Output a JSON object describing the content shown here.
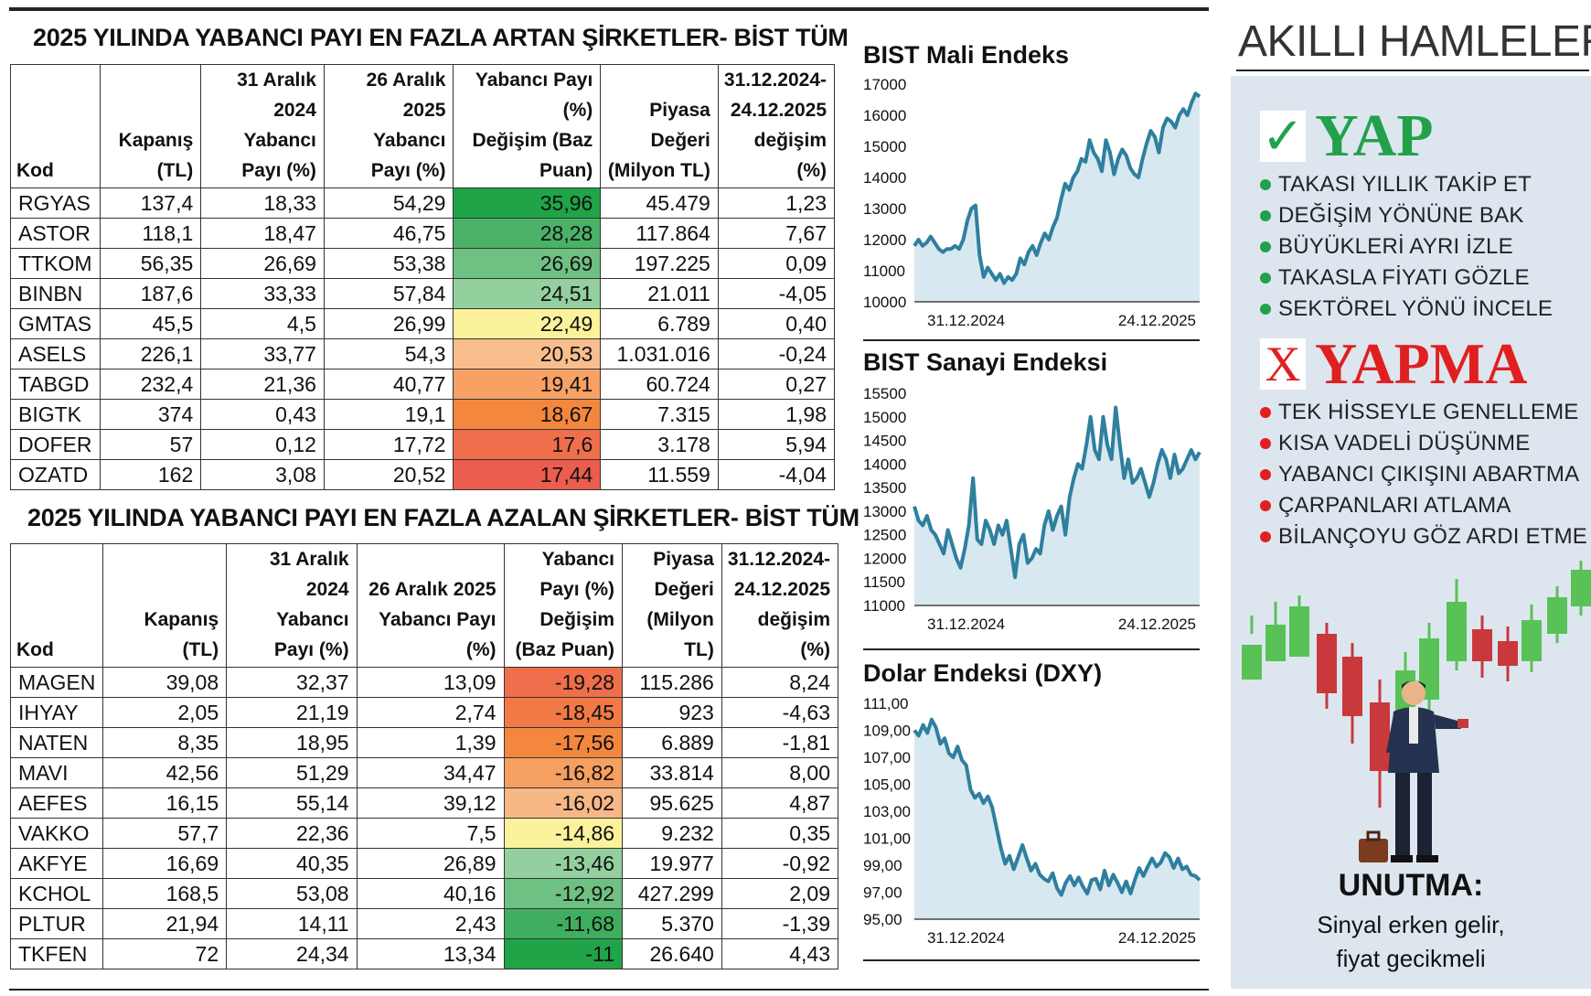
{
  "colors": {
    "ink": "#111111",
    "line": "#2f7f9f",
    "area": "#d8e8f0",
    "green": "#22a14a",
    "red": "#e02020",
    "candle_green": "#58c257",
    "candle_red": "#c9393c"
  },
  "increase_table": {
    "title": "2025 YILINDA YABANCI PAYI EN FAZLA ARTAN ŞİRKETLER- BİST TÜM",
    "headers": {
      "kod": "Kod",
      "kapanis": [
        "Kapanış",
        "(TL)"
      ],
      "aralik31": [
        "31 Aralık",
        "2024 Yabancı",
        "Payı (%)"
      ],
      "aralik26": [
        "26 Aralık",
        "2025 Yabancı",
        "Payı (%)"
      ],
      "degisim": [
        "Yabancı Payı (%)",
        "Değişim (Baz",
        "Puan)"
      ],
      "piyasa": [
        "Piyasa",
        "Değeri",
        "(Milyon TL)"
      ],
      "yillik": [
        "31.12.2024-",
        "24.12.2025",
        "değişim",
        "(%)"
      ]
    },
    "rows": [
      {
        "kod": "RGYAS",
        "kapanis": "137,4",
        "aralik31": "18,33",
        "aralik26": "54,29",
        "degisim": "35,96",
        "piyasa": "45.479",
        "yillik": "1,23",
        "color": "#1fa448"
      },
      {
        "kod": "ASTOR",
        "kapanis": "118,1",
        "aralik31": "18,47",
        "aralik26": "46,75",
        "degisim": "28,28",
        "piyasa": "117.864",
        "yillik": "7,67",
        "color": "#4ab266"
      },
      {
        "kod": "TTKOM",
        "kapanis": "56,35",
        "aralik31": "26,69",
        "aralik26": "53,38",
        "degisim": "26,69",
        "piyasa": "197.225",
        "yillik": "0,09",
        "color": "#6ec083"
      },
      {
        "kod": "BINBN",
        "kapanis": "187,6",
        "aralik31": "33,33",
        "aralik26": "57,84",
        "degisim": "24,51",
        "piyasa": "21.011",
        "yillik": "-4,05",
        "color": "#93d09e"
      },
      {
        "kod": "GMTAS",
        "kapanis": "45,5",
        "aralik31": "4,5",
        "aralik26": "26,99",
        "degisim": "22,49",
        "piyasa": "6.789",
        "yillik": "0,40",
        "color": "#fbf29b"
      },
      {
        "kod": "ASELS",
        "kapanis": "226,1",
        "aralik31": "33,77",
        "aralik26": "54,3",
        "degisim": "20,53",
        "piyasa": "1.031.016",
        "yillik": "-0,24",
        "color": "#f9be8e"
      },
      {
        "kod": "TABGD",
        "kapanis": "232,4",
        "aralik31": "21,36",
        "aralik26": "40,77",
        "degisim": "19,41",
        "piyasa": "60.724",
        "yillik": "0,27",
        "color": "#f7a164"
      },
      {
        "kod": "BIGTK",
        "kapanis": "374",
        "aralik31": "0,43",
        "aralik26": "19,1",
        "degisim": "18,67",
        "piyasa": "7.315",
        "yillik": "1,98",
        "color": "#f3873e"
      },
      {
        "kod": "DOFER",
        "kapanis": "57",
        "aralik31": "0,12",
        "aralik26": "17,72",
        "degisim": "17,6",
        "piyasa": "3.178",
        "yillik": "5,94",
        "color": "#ef6e4c"
      },
      {
        "kod": "OZATD",
        "kapanis": "162",
        "aralik31": "3,08",
        "aralik26": "20,52",
        "degisim": "17,44",
        "piyasa": "11.559",
        "yillik": "-4,04",
        "color": "#eb5d4e"
      }
    ]
  },
  "decrease_table": {
    "title": "2025 YILINDA YABANCI PAYI EN FAZLA AZALAN ŞİRKETLER- BİST TÜM",
    "headers": {
      "kod": "Kod",
      "kapanis": [
        "Kapanış (TL)"
      ],
      "aralik31": [
        "31 Aralık",
        "2024 Yabancı",
        "Payı (%)"
      ],
      "aralik26": [
        "26 Aralık 2025",
        "Yabancı Payı (%)"
      ],
      "degisim": [
        "Yabancı",
        "Payı (%)",
        "Değişim",
        "(Baz Puan)"
      ],
      "piyasa": [
        "Piyasa",
        "Değeri",
        "(Milyon",
        "TL)"
      ],
      "yillik": [
        "31.12.2024-",
        "24.12.2025",
        "değişim",
        "(%)"
      ]
    },
    "rows": [
      {
        "kod": "MAGEN",
        "kapanis": "39,08",
        "aralik31": "32,37",
        "aralik26": "13,09",
        "degisim": "-19,28",
        "piyasa": "115.286",
        "yillik": "8,24",
        "color": "#ef6e4c"
      },
      {
        "kod": "IHYAY",
        "kapanis": "2,05",
        "aralik31": "21,19",
        "aralik26": "2,74",
        "degisim": "-18,45",
        "piyasa": "923",
        "yillik": "-4,63",
        "color": "#f17a45"
      },
      {
        "kod": "NATEN",
        "kapanis": "8,35",
        "aralik31": "18,95",
        "aralik26": "1,39",
        "degisim": "-17,56",
        "piyasa": "6.889",
        "yillik": "-1,81",
        "color": "#f3873e"
      },
      {
        "kod": "MAVI",
        "kapanis": "42,56",
        "aralik31": "51,29",
        "aralik26": "34,47",
        "degisim": "-16,82",
        "piyasa": "33.814",
        "yillik": "8,00",
        "color": "#f59f61"
      },
      {
        "kod": "AEFES",
        "kapanis": "16,15",
        "aralik31": "55,14",
        "aralik26": "39,12",
        "degisim": "-16,02",
        "piyasa": "95.625",
        "yillik": "4,87",
        "color": "#f8b786"
      },
      {
        "kod": "VAKKO",
        "kapanis": "57,7",
        "aralik31": "22,36",
        "aralik26": "7,5",
        "degisim": "-14,86",
        "piyasa": "9.232",
        "yillik": "0,35",
        "color": "#fbf29b"
      },
      {
        "kod": "AKFYE",
        "kapanis": "16,69",
        "aralik31": "40,35",
        "aralik26": "26,89",
        "degisim": "-13,46",
        "piyasa": "19.977",
        "yillik": "-0,92",
        "color": "#93d09e"
      },
      {
        "kod": "KCHOL",
        "kapanis": "168,5",
        "aralik31": "53,08",
        "aralik26": "40,16",
        "degisim": "-12,92",
        "piyasa": "427.299",
        "yillik": "2,09",
        "color": "#6ec083"
      },
      {
        "kod": "PLTUR",
        "kapanis": "21,94",
        "aralik31": "14,11",
        "aralik26": "2,43",
        "degisim": "-11,68",
        "piyasa": "5.370",
        "yillik": "-1,39",
        "color": "#3fae5e"
      },
      {
        "kod": "TKFEN",
        "kapanis": "72",
        "aralik31": "24,34",
        "aralik26": "13,34",
        "degisim": "-11",
        "piyasa": "26.640",
        "yillik": "4,43",
        "color": "#1fa448"
      }
    ]
  },
  "chart_data": [
    {
      "type": "area",
      "title": "BIST Mali Endeks",
      "x_labels": [
        "31.12.2024",
        "24.12.2025"
      ],
      "yticks": [
        "17000",
        "16000",
        "15000",
        "14000",
        "13000",
        "12000",
        "11000",
        "10000"
      ],
      "ylim": [
        10000,
        17000
      ],
      "values": [
        11800,
        12000,
        11800,
        11900,
        12100,
        11900,
        11700,
        11600,
        11700,
        11700,
        11800,
        11700,
        12000,
        12600,
        13000,
        13100,
        11500,
        10800,
        11100,
        10900,
        10700,
        10900,
        10600,
        10800,
        10700,
        10900,
        11400,
        11200,
        11600,
        11800,
        11500,
        11900,
        12200,
        12000,
        12400,
        12700,
        13300,
        13800,
        13600,
        14000,
        14200,
        14600,
        14500,
        15200,
        14800,
        14600,
        14200,
        15200,
        14800,
        14100,
        14600,
        14900,
        14700,
        14300,
        14100,
        14000,
        14600,
        15100,
        15500,
        15300,
        14800,
        15600,
        15900,
        15800,
        15600,
        16000,
        16200,
        16000,
        16400,
        16700,
        16600
      ]
    },
    {
      "type": "area",
      "title": "BIST Sanayi Endeksi",
      "x_labels": [
        "31.12.2024",
        "24.12.2025"
      ],
      "yticks": [
        "15500",
        "15000",
        "14500",
        "14000",
        "13500",
        "13000",
        "12500",
        "12000",
        "11500",
        "11000"
      ],
      "ylim": [
        11000,
        15500
      ],
      "values": [
        13100,
        12800,
        12700,
        12900,
        12600,
        12500,
        12300,
        12100,
        12600,
        12300,
        12000,
        11800,
        12200,
        12700,
        13700,
        12400,
        12300,
        12800,
        12600,
        12300,
        12700,
        12500,
        12800,
        12200,
        11600,
        12300,
        12500,
        11900,
        12000,
        12200,
        12100,
        12700,
        13000,
        12600,
        12900,
        13100,
        12500,
        13300,
        13700,
        14000,
        13900,
        14400,
        15000,
        14300,
        14100,
        15000,
        14400,
        14100,
        15200,
        14400,
        13700,
        14100,
        13600,
        13700,
        13900,
        13600,
        13300,
        13600,
        14000,
        14300,
        14100,
        13700,
        14200,
        13800,
        13900,
        14100,
        14300,
        14100,
        14250
      ]
    },
    {
      "type": "area",
      "title": "Dolar Endeksi (DXY)",
      "x_labels": [
        "31.12.2024",
        "24.12.2025"
      ],
      "yticks": [
        "111,00",
        "109,00",
        "107,00",
        "105,00",
        "103,00",
        "101,00",
        "99,00",
        "97,00",
        "95,00"
      ],
      "ylim": [
        95,
        111
      ],
      "values": [
        109.0,
        108.6,
        109.4,
        108.8,
        109.8,
        109.2,
        108.0,
        108.4,
        107.3,
        107.0,
        107.8,
        106.8,
        106.4,
        104.6,
        104.0,
        104.3,
        103.6,
        104.1,
        103.3,
        101.8,
        100.3,
        99.1,
        99.7,
        98.7,
        99.6,
        100.5,
        99.5,
        98.6,
        99.1,
        98.3,
        98.0,
        97.8,
        98.4,
        97.3,
        96.8,
        97.7,
        98.2,
        97.5,
        98.1,
        97.4,
        96.9,
        97.9,
        98.0,
        97.2,
        98.6,
        97.5,
        98.3,
        97.7,
        97.0,
        97.8,
        96.9,
        97.9,
        98.8,
        98.2,
        98.9,
        99.5,
        98.9,
        99.2,
        99.9,
        99.6,
        98.8,
        99.5,
        98.7,
        98.9,
        98.3,
        98.2,
        97.9
      ]
    }
  ],
  "panel": {
    "title": "AKILLI HAMLELER",
    "yap": {
      "icon": "check-icon",
      "mark": "✓",
      "label": "YAP",
      "items": [
        "TAKASI YILLIK TAKİP ET",
        "DEĞİŞİM YÖNÜNE BAK",
        "BÜYÜKLERİ AYRI İZLE",
        "TAKASLA FİYATI GÖZLE",
        "SEKTÖREL YÖNÜ İNCELE"
      ]
    },
    "yapma": {
      "icon": "x-icon",
      "mark": "X",
      "label": "YAPMA",
      "items": [
        "TEK HİSSEYLE GENELLEME",
        "KISA VADELİ DÜŞÜNME",
        "YABANCI ÇIKIŞINI ABARTMA",
        "ÇARPANLARI ATLAMA",
        "BİLANÇOYU GÖZ ARDI ETME"
      ]
    },
    "unutma": {
      "title": "UNUTMA:",
      "line1": "Sinyal erken gelir,",
      "line2": "fiyat gecikmeli"
    }
  }
}
